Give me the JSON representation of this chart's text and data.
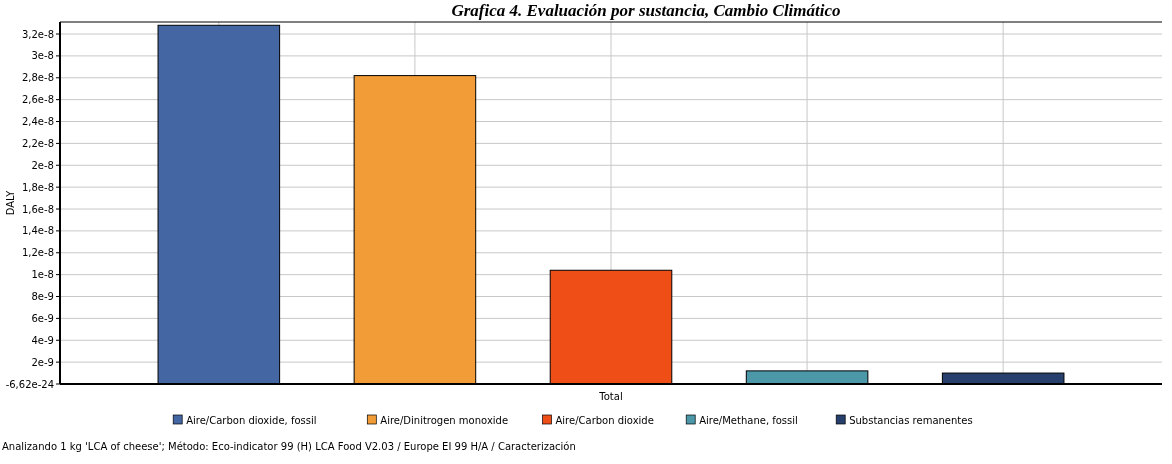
{
  "chart_data": {
    "type": "bar",
    "title": "Grafica 4. Evaluación por sustancia, Cambio Climático",
    "ylabel": "DALY",
    "categories": [
      "Total"
    ],
    "series": [
      {
        "name": "Aire/Carbon dioxide, fossil",
        "color": "#4466a3",
        "values": [
          3.28e-08
        ]
      },
      {
        "name": "Aire/Dinitrogen monoxide",
        "color": "#f29c38",
        "values": [
          2.82e-08
        ]
      },
      {
        "name": "Aire/Carbon dioxide",
        "color": "#ef4f16",
        "values": [
          1.04e-08
        ]
      },
      {
        "name": "Aire/Methane, fossil",
        "color": "#4c98a8",
        "values": [
          1.2e-09
        ]
      },
      {
        "name": "Substancias remanentes",
        "color": "#263f6c",
        "values": [
          1e-09
        ]
      }
    ],
    "ylim": [
      -6.62e-24,
      3.31e-08
    ],
    "yticks": [
      {
        "value": -6.62e-24,
        "label": "-6,62e-24"
      },
      {
        "value": 2e-09,
        "label": "2e-9"
      },
      {
        "value": 4e-09,
        "label": "4e-9"
      },
      {
        "value": 6e-09,
        "label": "6e-9"
      },
      {
        "value": 8e-09,
        "label": "8e-9"
      },
      {
        "value": 1e-08,
        "label": "1e-8"
      },
      {
        "value": 1.2e-08,
        "label": "1,2e-8"
      },
      {
        "value": 1.4e-08,
        "label": "1,4e-8"
      },
      {
        "value": 1.6e-08,
        "label": "1,6e-8"
      },
      {
        "value": 1.8e-08,
        "label": "1,8e-8"
      },
      {
        "value": 2e-08,
        "label": "2e-8"
      },
      {
        "value": 2.2e-08,
        "label": "2,2e-8"
      },
      {
        "value": 2.4e-08,
        "label": "2,4e-8"
      },
      {
        "value": 2.6e-08,
        "label": "2,6e-8"
      },
      {
        "value": 2.8e-08,
        "label": "2,8e-8"
      },
      {
        "value": 3e-08,
        "label": "3e-8"
      },
      {
        "value": 3.2e-08,
        "label": "3,2e-8"
      }
    ],
    "grid": true,
    "legend": "bottom",
    "annotations": [
      "Analizando 1 kg 'LCA of cheese';  Método: Eco-indicator 99 (H) LCA Food V2.03 / Europe EI 99 H/A / Caracterización"
    ]
  }
}
